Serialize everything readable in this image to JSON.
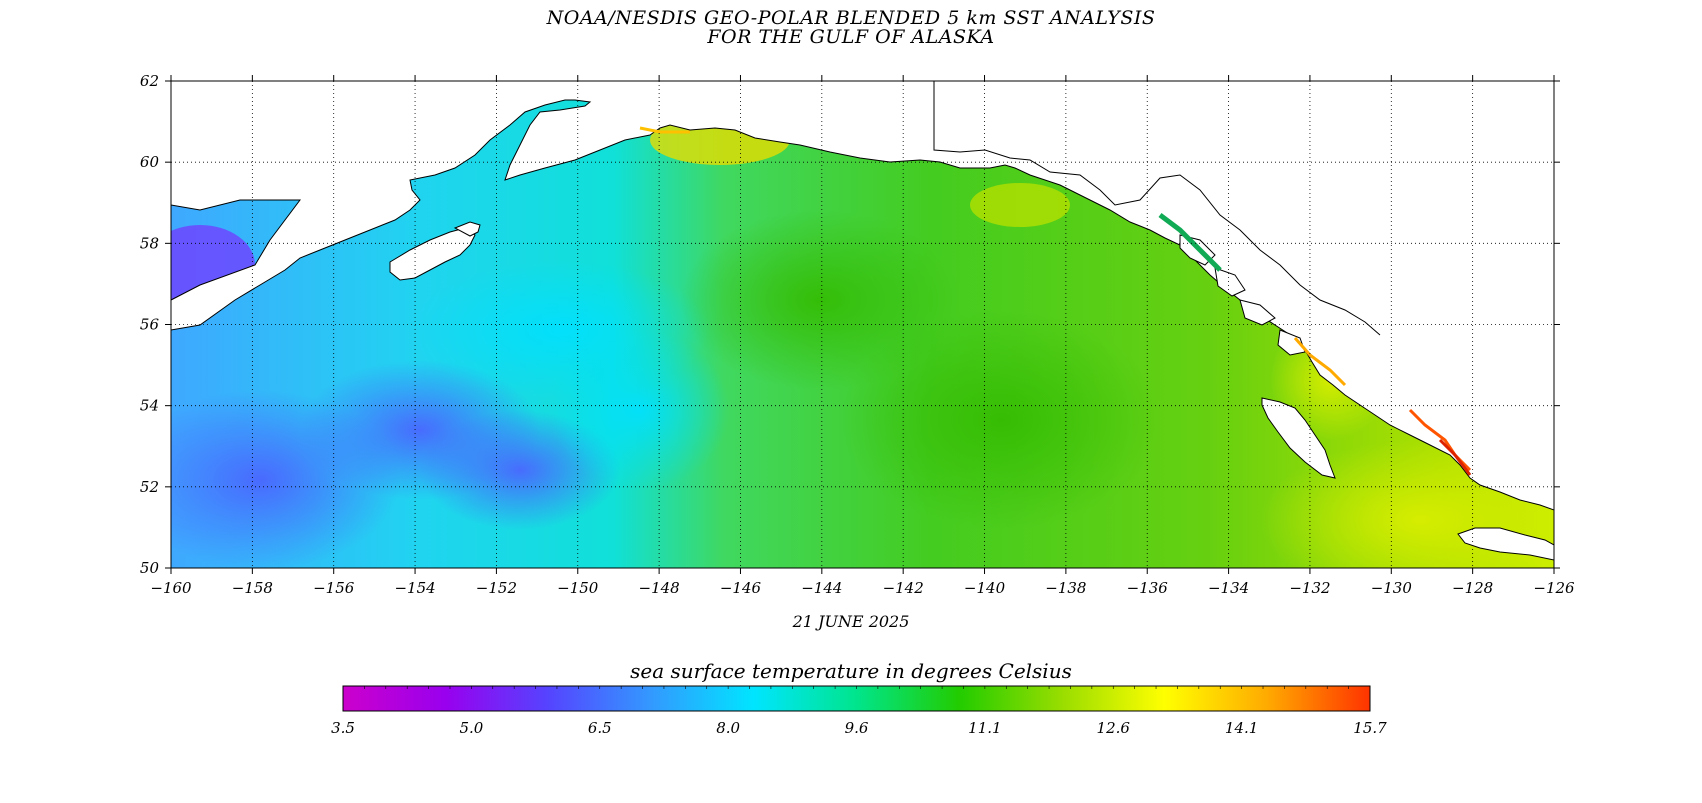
{
  "title": {
    "line1": "NOAA/NESDIS GEO-POLAR BLENDED 5 km SST ANALYSIS",
    "line2": "FOR THE GULF OF ALASKA"
  },
  "date": "21 JUNE 2025",
  "colorbar": {
    "title": "sea surface temperature in degrees Celsius",
    "tick_labels": [
      "3.5",
      "5.0",
      "6.5",
      "8.0",
      "9.6",
      "11.1",
      "12.6",
      "14.1",
      "15.7"
    ],
    "colors": [
      "#cc00cc",
      "#9900ee",
      "#5544ff",
      "#3399ff",
      "#00e5ff",
      "#00e58c",
      "#22cc00",
      "#99dd00",
      "#ffff00",
      "#ffaa00",
      "#ff3300"
    ]
  },
  "map": {
    "lon_labels": [
      "-160",
      "-158",
      "-156",
      "-154",
      "-152",
      "-150",
      "-148",
      "-146",
      "-144",
      "-142",
      "-140",
      "-138",
      "-136",
      "-134",
      "-132",
      "-130",
      "-128",
      "-126"
    ],
    "lat_labels": [
      "62",
      "60",
      "58",
      "56",
      "54",
      "52",
      "50"
    ],
    "lon_range": [
      -160,
      -126
    ],
    "lat_range": [
      50,
      62
    ],
    "grid": true,
    "land_color": "#ffffff",
    "coast_color": "#000000"
  }
}
